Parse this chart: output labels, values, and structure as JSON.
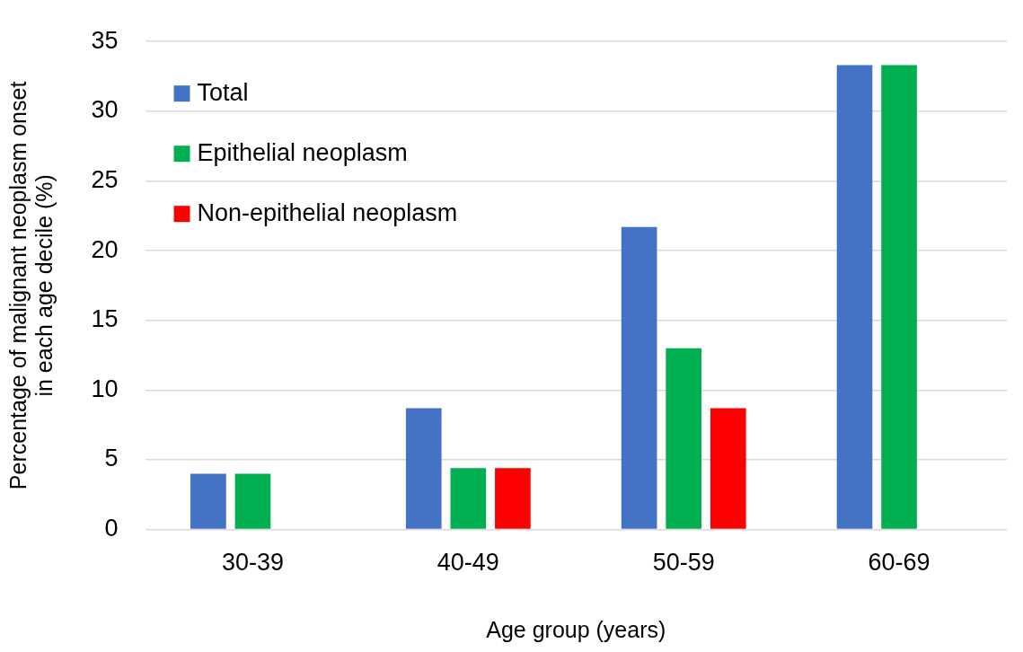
{
  "chart_data": {
    "type": "bar",
    "xlabel": "Age group (years)",
    "ylabel": "Percentage of malignant neoplasm onset\nin each age decile (%)",
    "categories": [
      "30-39",
      "40-49",
      "50-59",
      "60-69"
    ],
    "series": [
      {
        "name": "Total",
        "color": "#4472c4",
        "values": [
          4.0,
          8.7,
          21.7,
          33.3
        ]
      },
      {
        "name": "Epithelial neoplasm",
        "color": "#00b050",
        "values": [
          4.0,
          4.4,
          13.0,
          33.3
        ]
      },
      {
        "name": "Non-epithelial neoplasm",
        "color": "#ff0000",
        "values": [
          0,
          4.4,
          8.7,
          0
        ]
      }
    ],
    "ylim": [
      0,
      35
    ],
    "yticks": [
      0,
      5,
      10,
      15,
      20,
      25,
      30,
      35
    ],
    "grid": "y",
    "legend": "top left"
  }
}
